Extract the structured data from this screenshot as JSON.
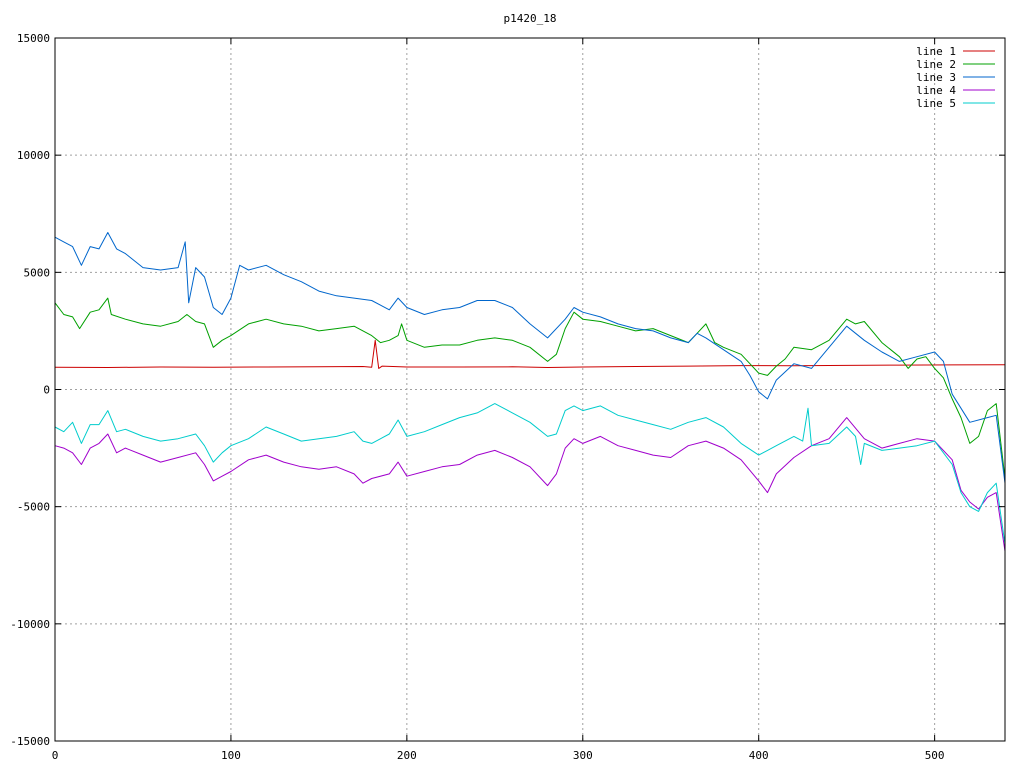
{
  "chart_data": {
    "type": "line",
    "title": "p1420_18",
    "xlabel": "",
    "ylabel": "",
    "xlim": [
      0,
      540
    ],
    "ylim": [
      -15000,
      15000
    ],
    "x_ticks": [
      0,
      100,
      200,
      300,
      400,
      500
    ],
    "y_ticks": [
      -15000,
      -10000,
      -5000,
      0,
      5000,
      10000,
      15000
    ],
    "grid": true,
    "legend_position": "top-right",
    "series": [
      {
        "name": "line 1",
        "color": "#cc0000",
        "points": [
          [
            0,
            950
          ],
          [
            30,
            940
          ],
          [
            60,
            960
          ],
          [
            90,
            950
          ],
          [
            120,
            960
          ],
          [
            150,
            970
          ],
          [
            175,
            980
          ],
          [
            180,
            950
          ],
          [
            182,
            2100
          ],
          [
            184,
            900
          ],
          [
            186,
            1000
          ],
          [
            200,
            960
          ],
          [
            230,
            960
          ],
          [
            260,
            970
          ],
          [
            280,
            940
          ],
          [
            300,
            960
          ],
          [
            330,
            980
          ],
          [
            360,
            1000
          ],
          [
            390,
            1020
          ],
          [
            420,
            1010
          ],
          [
            450,
            1030
          ],
          [
            480,
            1040
          ],
          [
            510,
            1050
          ],
          [
            540,
            1060
          ]
        ]
      },
      {
        "name": "line 2",
        "color": "#00a000",
        "points": [
          [
            0,
            3700
          ],
          [
            5,
            3200
          ],
          [
            10,
            3100
          ],
          [
            14,
            2600
          ],
          [
            20,
            3300
          ],
          [
            25,
            3400
          ],
          [
            30,
            3900
          ],
          [
            32,
            3200
          ],
          [
            40,
            3000
          ],
          [
            50,
            2800
          ],
          [
            60,
            2700
          ],
          [
            70,
            2900
          ],
          [
            75,
            3200
          ],
          [
            80,
            2900
          ],
          [
            85,
            2800
          ],
          [
            90,
            1800
          ],
          [
            95,
            2100
          ],
          [
            100,
            2300
          ],
          [
            110,
            2800
          ],
          [
            120,
            3000
          ],
          [
            130,
            2800
          ],
          [
            140,
            2700
          ],
          [
            150,
            2500
          ],
          [
            160,
            2600
          ],
          [
            170,
            2700
          ],
          [
            180,
            2300
          ],
          [
            185,
            2000
          ],
          [
            190,
            2100
          ],
          [
            195,
            2300
          ],
          [
            197,
            2800
          ],
          [
            200,
            2100
          ],
          [
            210,
            1800
          ],
          [
            220,
            1900
          ],
          [
            230,
            1900
          ],
          [
            240,
            2100
          ],
          [
            250,
            2200
          ],
          [
            260,
            2100
          ],
          [
            270,
            1800
          ],
          [
            280,
            1200
          ],
          [
            285,
            1500
          ],
          [
            290,
            2600
          ],
          [
            295,
            3300
          ],
          [
            300,
            3000
          ],
          [
            310,
            2900
          ],
          [
            320,
            2700
          ],
          [
            330,
            2500
          ],
          [
            340,
            2600
          ],
          [
            350,
            2300
          ],
          [
            360,
            2000
          ],
          [
            365,
            2400
          ],
          [
            370,
            2800
          ],
          [
            375,
            2000
          ],
          [
            380,
            1800
          ],
          [
            390,
            1500
          ],
          [
            395,
            1100
          ],
          [
            400,
            700
          ],
          [
            405,
            600
          ],
          [
            410,
            1000
          ],
          [
            415,
            1300
          ],
          [
            420,
            1800
          ],
          [
            430,
            1700
          ],
          [
            440,
            2100
          ],
          [
            450,
            3000
          ],
          [
            455,
            2800
          ],
          [
            460,
            2900
          ],
          [
            470,
            2000
          ],
          [
            480,
            1400
          ],
          [
            485,
            900
          ],
          [
            490,
            1300
          ],
          [
            495,
            1400
          ],
          [
            500,
            900
          ],
          [
            505,
            500
          ],
          [
            510,
            -400
          ],
          [
            515,
            -1200
          ],
          [
            520,
            -2300
          ],
          [
            525,
            -2000
          ],
          [
            530,
            -900
          ],
          [
            535,
            -600
          ],
          [
            540,
            -3800
          ]
        ]
      },
      {
        "name": "line 3",
        "color": "#0066cc",
        "points": [
          [
            0,
            6500
          ],
          [
            5,
            6300
          ],
          [
            10,
            6100
          ],
          [
            15,
            5300
          ],
          [
            20,
            6100
          ],
          [
            25,
            6000
          ],
          [
            30,
            6700
          ],
          [
            35,
            6000
          ],
          [
            40,
            5800
          ],
          [
            50,
            5200
          ],
          [
            60,
            5100
          ],
          [
            70,
            5200
          ],
          [
            74,
            6300
          ],
          [
            76,
            3700
          ],
          [
            80,
            5200
          ],
          [
            85,
            4800
          ],
          [
            90,
            3500
          ],
          [
            95,
            3200
          ],
          [
            100,
            3900
          ],
          [
            105,
            5300
          ],
          [
            110,
            5100
          ],
          [
            120,
            5300
          ],
          [
            130,
            4900
          ],
          [
            140,
            4600
          ],
          [
            150,
            4200
          ],
          [
            160,
            4000
          ],
          [
            170,
            3900
          ],
          [
            180,
            3800
          ],
          [
            190,
            3400
          ],
          [
            195,
            3900
          ],
          [
            200,
            3500
          ],
          [
            210,
            3200
          ],
          [
            220,
            3400
          ],
          [
            230,
            3500
          ],
          [
            240,
            3800
          ],
          [
            250,
            3800
          ],
          [
            260,
            3500
          ],
          [
            270,
            2800
          ],
          [
            280,
            2200
          ],
          [
            290,
            3000
          ],
          [
            295,
            3500
          ],
          [
            300,
            3300
          ],
          [
            310,
            3100
          ],
          [
            320,
            2800
          ],
          [
            330,
            2600
          ],
          [
            340,
            2500
          ],
          [
            350,
            2200
          ],
          [
            360,
            2000
          ],
          [
            365,
            2400
          ],
          [
            370,
            2200
          ],
          [
            380,
            1700
          ],
          [
            390,
            1200
          ],
          [
            395,
            600
          ],
          [
            400,
            -100
          ],
          [
            405,
            -400
          ],
          [
            410,
            400
          ],
          [
            420,
            1100
          ],
          [
            430,
            900
          ],
          [
            440,
            1800
          ],
          [
            450,
            2700
          ],
          [
            460,
            2100
          ],
          [
            470,
            1600
          ],
          [
            480,
            1200
          ],
          [
            490,
            1400
          ],
          [
            500,
            1600
          ],
          [
            505,
            1200
          ],
          [
            510,
            -200
          ],
          [
            520,
            -1400
          ],
          [
            530,
            -1200
          ],
          [
            535,
            -1100
          ],
          [
            540,
            -4000
          ]
        ]
      },
      {
        "name": "line 4",
        "color": "#a000cc",
        "points": [
          [
            0,
            -2400
          ],
          [
            5,
            -2500
          ],
          [
            10,
            -2700
          ],
          [
            15,
            -3200
          ],
          [
            20,
            -2500
          ],
          [
            25,
            -2300
          ],
          [
            30,
            -1900
          ],
          [
            35,
            -2700
          ],
          [
            40,
            -2500
          ],
          [
            50,
            -2800
          ],
          [
            60,
            -3100
          ],
          [
            70,
            -2900
          ],
          [
            80,
            -2700
          ],
          [
            85,
            -3200
          ],
          [
            90,
            -3900
          ],
          [
            95,
            -3700
          ],
          [
            100,
            -3500
          ],
          [
            110,
            -3000
          ],
          [
            120,
            -2800
          ],
          [
            130,
            -3100
          ],
          [
            140,
            -3300
          ],
          [
            150,
            -3400
          ],
          [
            160,
            -3300
          ],
          [
            170,
            -3600
          ],
          [
            175,
            -4000
          ],
          [
            180,
            -3800
          ],
          [
            190,
            -3600
          ],
          [
            195,
            -3100
          ],
          [
            200,
            -3700
          ],
          [
            210,
            -3500
          ],
          [
            220,
            -3300
          ],
          [
            230,
            -3200
          ],
          [
            240,
            -2800
          ],
          [
            250,
            -2600
          ],
          [
            260,
            -2900
          ],
          [
            270,
            -3300
          ],
          [
            280,
            -4100
          ],
          [
            285,
            -3600
          ],
          [
            290,
            -2500
          ],
          [
            295,
            -2100
          ],
          [
            300,
            -2300
          ],
          [
            310,
            -2000
          ],
          [
            320,
            -2400
          ],
          [
            330,
            -2600
          ],
          [
            340,
            -2800
          ],
          [
            350,
            -2900
          ],
          [
            360,
            -2400
          ],
          [
            370,
            -2200
          ],
          [
            380,
            -2500
          ],
          [
            390,
            -3000
          ],
          [
            400,
            -3900
          ],
          [
            405,
            -4400
          ],
          [
            410,
            -3600
          ],
          [
            420,
            -2900
          ],
          [
            430,
            -2400
          ],
          [
            440,
            -2100
          ],
          [
            450,
            -1200
          ],
          [
            460,
            -2100
          ],
          [
            470,
            -2500
          ],
          [
            480,
            -2300
          ],
          [
            490,
            -2100
          ],
          [
            500,
            -2200
          ],
          [
            510,
            -3000
          ],
          [
            515,
            -4300
          ],
          [
            520,
            -4800
          ],
          [
            525,
            -5100
          ],
          [
            530,
            -4600
          ],
          [
            535,
            -4400
          ],
          [
            540,
            -6900
          ]
        ]
      },
      {
        "name": "line 5",
        "color": "#00cccc",
        "points": [
          [
            0,
            -1600
          ],
          [
            5,
            -1800
          ],
          [
            10,
            -1400
          ],
          [
            15,
            -2300
          ],
          [
            20,
            -1500
          ],
          [
            25,
            -1500
          ],
          [
            30,
            -900
          ],
          [
            35,
            -1800
          ],
          [
            40,
            -1700
          ],
          [
            50,
            -2000
          ],
          [
            60,
            -2200
          ],
          [
            70,
            -2100
          ],
          [
            80,
            -1900
          ],
          [
            85,
            -2400
          ],
          [
            90,
            -3100
          ],
          [
            95,
            -2700
          ],
          [
            100,
            -2400
          ],
          [
            110,
            -2100
          ],
          [
            120,
            -1600
          ],
          [
            130,
            -1900
          ],
          [
            140,
            -2200
          ],
          [
            150,
            -2100
          ],
          [
            160,
            -2000
          ],
          [
            170,
            -1800
          ],
          [
            175,
            -2200
          ],
          [
            180,
            -2300
          ],
          [
            190,
            -1900
          ],
          [
            195,
            -1300
          ],
          [
            200,
            -2000
          ],
          [
            210,
            -1800
          ],
          [
            220,
            -1500
          ],
          [
            230,
            -1200
          ],
          [
            240,
            -1000
          ],
          [
            250,
            -600
          ],
          [
            260,
            -1000
          ],
          [
            270,
            -1400
          ],
          [
            280,
            -2000
          ],
          [
            285,
            -1900
          ],
          [
            290,
            -900
          ],
          [
            295,
            -700
          ],
          [
            300,
            -900
          ],
          [
            310,
            -700
          ],
          [
            320,
            -1100
          ],
          [
            330,
            -1300
          ],
          [
            340,
            -1500
          ],
          [
            350,
            -1700
          ],
          [
            360,
            -1400
          ],
          [
            370,
            -1200
          ],
          [
            380,
            -1600
          ],
          [
            390,
            -2300
          ],
          [
            400,
            -2800
          ],
          [
            405,
            -2600
          ],
          [
            410,
            -2400
          ],
          [
            420,
            -2000
          ],
          [
            425,
            -2200
          ],
          [
            428,
            -800
          ],
          [
            430,
            -2400
          ],
          [
            440,
            -2300
          ],
          [
            450,
            -1600
          ],
          [
            455,
            -2000
          ],
          [
            458,
            -3200
          ],
          [
            460,
            -2300
          ],
          [
            470,
            -2600
          ],
          [
            480,
            -2500
          ],
          [
            490,
            -2400
          ],
          [
            500,
            -2200
          ],
          [
            510,
            -3200
          ],
          [
            515,
            -4400
          ],
          [
            520,
            -5000
          ],
          [
            525,
            -5200
          ],
          [
            530,
            -4400
          ],
          [
            535,
            -4000
          ],
          [
            540,
            -6600
          ]
        ]
      }
    ]
  }
}
